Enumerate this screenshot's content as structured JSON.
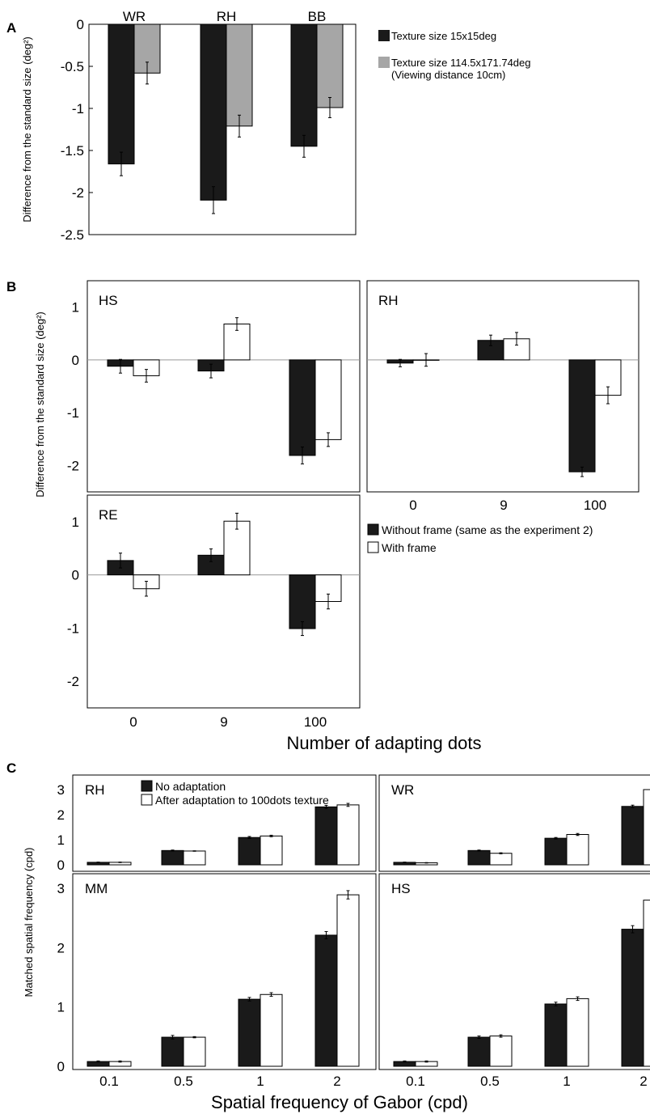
{
  "panel_labels": {
    "a": "A",
    "b": "B",
    "c": "C"
  },
  "colors": {
    "black_bar": "#1a1a1a",
    "gray_bar": "#a6a6a6",
    "white_bar": "#ffffff",
    "frame": "#000000"
  },
  "chart_data": [
    {
      "id": "A",
      "type": "bar",
      "ylabel": "Difference from the standard size (deg²)",
      "ylim": [
        -2.5,
        0
      ],
      "yticks": [
        "0",
        "-0.5",
        "-1",
        "-1.5",
        "-2",
        "-2.5"
      ],
      "categories": [
        "WR",
        "RH",
        "BB"
      ],
      "series": [
        {
          "name": "Texture size 15x15deg",
          "values": [
            -1.66,
            -2.09,
            -1.45
          ],
          "errors": [
            0.14,
            0.16,
            0.13
          ]
        },
        {
          "name": "Texture size 114.5x171.74deg",
          "name_line2": "(Viewing distance 10cm)",
          "values": [
            -0.58,
            -1.21,
            -0.99
          ],
          "errors": [
            0.13,
            0.13,
            0.12
          ]
        }
      ],
      "legend_position": "right"
    },
    {
      "id": "B",
      "type": "bar",
      "ylabel": "Difference from the standard size (deg²)",
      "xlabel": "Number of adapting dots",
      "categories": [
        "0",
        "9",
        "100"
      ],
      "series_names": [
        "Without frame (same as the experiment 2)",
        "With frame"
      ],
      "panels": [
        {
          "name": "HS",
          "ylim": [
            -2.5,
            1.5
          ],
          "yticks": [
            "1",
            "0",
            "-1",
            "-2"
          ],
          "black": [
            -0.12,
            -0.21,
            -1.81
          ],
          "black_err": [
            0.13,
            0.13,
            0.16
          ],
          "white": [
            -0.3,
            0.68,
            -1.51
          ],
          "white_err": [
            0.12,
            0.12,
            0.13
          ]
        },
        {
          "name": "RH",
          "ylim": [
            -2.5,
            1.5
          ],
          "yticks": [],
          "black": [
            -0.06,
            0.37,
            -2.12
          ],
          "black_err": [
            0.07,
            0.1,
            0.09
          ],
          "white": [
            0.0,
            0.4,
            -0.67
          ],
          "white_err": [
            0.12,
            0.12,
            0.16
          ]
        },
        {
          "name": "RE",
          "ylim": [
            -2.5,
            1.5
          ],
          "yticks": [
            "1",
            "0",
            "-1",
            "-2"
          ],
          "black": [
            0.27,
            0.37,
            -1.01
          ],
          "black_err": [
            0.14,
            0.12,
            0.13
          ],
          "white": [
            -0.26,
            1.01,
            -0.5
          ],
          "white_err": [
            0.14,
            0.15,
            0.14
          ]
        }
      ],
      "legend_position": "right"
    },
    {
      "id": "C",
      "type": "bar",
      "ylabel": "Matched spatial frequency (cpd)",
      "xlabel": "Spatial frequency of Gabor (cpd)",
      "categories": [
        "0.1",
        "0.5",
        "1",
        "2"
      ],
      "series_names": [
        "No adaptation",
        "After adaptation to 100dots texture"
      ],
      "ylim": [
        0,
        3.3
      ],
      "yticks": [
        "3",
        "2",
        "1",
        "0"
      ],
      "panels": [
        {
          "name": "RH",
          "black": [
            0.1,
            0.57,
            1.09,
            2.31
          ],
          "white": [
            0.1,
            0.55,
            1.15,
            2.39
          ],
          "black_err": [
            0.01,
            0.02,
            0.04,
            0.06
          ],
          "white_err": [
            0.01,
            0.01,
            0.03,
            0.06
          ]
        },
        {
          "name": "WR",
          "black": [
            0.1,
            0.57,
            1.06,
            2.33
          ],
          "white": [
            0.08,
            0.46,
            1.21,
            3.0
          ],
          "black_err": [
            0.01,
            0.02,
            0.03,
            0.05
          ],
          "white_err": [
            0.01,
            0.02,
            0.04,
            0.06
          ]
        },
        {
          "name": "MM",
          "black": [
            0.08,
            0.49,
            1.13,
            2.21
          ],
          "white": [
            0.08,
            0.49,
            1.21,
            2.89
          ],
          "black_err": [
            0.01,
            0.03,
            0.03,
            0.06
          ],
          "white_err": [
            0.01,
            0.01,
            0.03,
            0.07
          ]
        },
        {
          "name": "HS",
          "black": [
            0.08,
            0.49,
            1.05,
            2.31
          ],
          "white": [
            0.08,
            0.51,
            1.14,
            2.8
          ],
          "black_err": [
            0.01,
            0.02,
            0.03,
            0.06
          ],
          "white_err": [
            0.01,
            0.02,
            0.03,
            0.07
          ]
        }
      ]
    }
  ]
}
